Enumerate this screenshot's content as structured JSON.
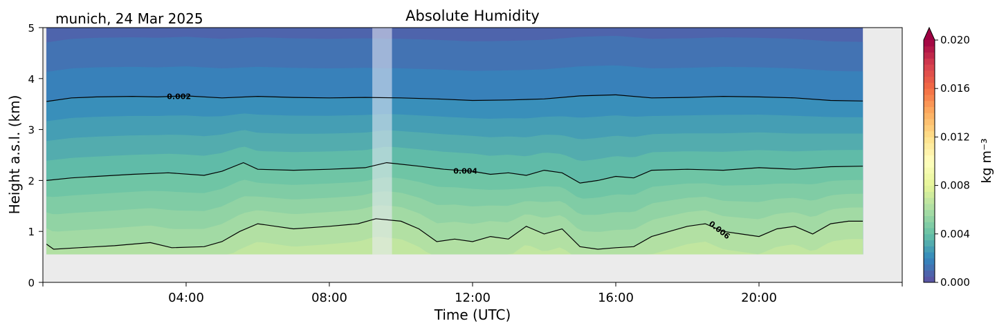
{
  "chart_data": {
    "type": "heatmap",
    "title": "Absolute Humidity",
    "site_label": "munich, 24 Mar 2025",
    "xlabel": "Time (UTC)",
    "ylabel": "Height a.s.l. (km)",
    "xlim_hours": [
      0,
      24
    ],
    "ylim_km": [
      0,
      5
    ],
    "x_ticks": [
      {
        "hour": 4,
        "label": "04:00"
      },
      {
        "hour": 8,
        "label": "08:00"
      },
      {
        "hour": 12,
        "label": "12:00"
      },
      {
        "hour": 16,
        "label": "16:00"
      },
      {
        "hour": 20,
        "label": "20:00"
      }
    ],
    "y_ticks": [
      {
        "value": 0,
        "label": "0"
      },
      {
        "value": 1,
        "label": "1"
      },
      {
        "value": 2,
        "label": "2"
      },
      {
        "value": 3,
        "label": "3"
      },
      {
        "value": 4,
        "label": "4"
      },
      {
        "value": 5,
        "label": "5"
      }
    ],
    "data_coverage_hours": [
      0.1,
      22.9
    ],
    "data_bottom_km": 0.55,
    "missing_data_band_hours": [
      9.2,
      9.75
    ],
    "colorbar": {
      "label": "kg m⁻³",
      "range": [
        0.0,
        0.02
      ],
      "extend": "max",
      "ticks": [
        {
          "value": 0.0,
          "label": "0.000"
        },
        {
          "value": 0.004,
          "label": "0.004"
        },
        {
          "value": 0.008,
          "label": "0.008"
        },
        {
          "value": 0.012,
          "label": "0.012"
        },
        {
          "value": 0.016,
          "label": "0.016"
        },
        {
          "value": 0.02,
          "label": "0.020"
        }
      ],
      "colormap": "Spectral_r"
    },
    "contours": [
      {
        "value": 0.002,
        "label": "0.002",
        "label_at_hour": 3.8,
        "points": [
          [
            0.1,
            3.55
          ],
          [
            0.8,
            3.62
          ],
          [
            1.5,
            3.64
          ],
          [
            2.5,
            3.65
          ],
          [
            3.2,
            3.64
          ],
          [
            4.0,
            3.66
          ],
          [
            5.0,
            3.62
          ],
          [
            6.0,
            3.65
          ],
          [
            7.0,
            3.63
          ],
          [
            8.0,
            3.62
          ],
          [
            9.0,
            3.63
          ],
          [
            10.0,
            3.62
          ],
          [
            11.0,
            3.6
          ],
          [
            12.0,
            3.57
          ],
          [
            13.0,
            3.58
          ],
          [
            14.0,
            3.6
          ],
          [
            15.0,
            3.66
          ],
          [
            16.0,
            3.68
          ],
          [
            17.0,
            3.62
          ],
          [
            18.0,
            3.63
          ],
          [
            19.0,
            3.65
          ],
          [
            20.0,
            3.64
          ],
          [
            21.0,
            3.62
          ],
          [
            22.0,
            3.57
          ],
          [
            22.9,
            3.56
          ]
        ]
      },
      {
        "value": 0.004,
        "label": "0.004",
        "label_at_hour": 11.8,
        "points": [
          [
            0.1,
            2.0
          ],
          [
            0.8,
            2.05
          ],
          [
            1.5,
            2.08
          ],
          [
            2.5,
            2.12
          ],
          [
            3.5,
            2.15
          ],
          [
            4.5,
            2.1
          ],
          [
            5.0,
            2.18
          ],
          [
            5.6,
            2.35
          ],
          [
            6.0,
            2.22
          ],
          [
            7.0,
            2.2
          ],
          [
            8.0,
            2.22
          ],
          [
            9.0,
            2.25
          ],
          [
            9.6,
            2.35
          ],
          [
            10.5,
            2.28
          ],
          [
            11.2,
            2.22
          ],
          [
            12.0,
            2.18
          ],
          [
            12.5,
            2.12
          ],
          [
            13.0,
            2.15
          ],
          [
            13.5,
            2.1
          ],
          [
            14.0,
            2.2
          ],
          [
            14.5,
            2.15
          ],
          [
            15.0,
            1.95
          ],
          [
            15.5,
            2.0
          ],
          [
            16.0,
            2.08
          ],
          [
            16.5,
            2.05
          ],
          [
            17.0,
            2.2
          ],
          [
            18.0,
            2.22
          ],
          [
            19.0,
            2.2
          ],
          [
            20.0,
            2.25
          ],
          [
            21.0,
            2.22
          ],
          [
            22.0,
            2.27
          ],
          [
            22.9,
            2.28
          ]
        ]
      },
      {
        "value": 0.006,
        "label": "0.006",
        "label_at_hour": 18.9,
        "points": [
          [
            0.1,
            0.75
          ],
          [
            0.3,
            0.65
          ],
          [
            1.0,
            0.68
          ],
          [
            2.0,
            0.72
          ],
          [
            3.0,
            0.78
          ],
          [
            3.6,
            0.68
          ],
          [
            4.5,
            0.7
          ],
          [
            5.0,
            0.8
          ],
          [
            5.5,
            1.0
          ],
          [
            6.0,
            1.15
          ],
          [
            6.5,
            1.1
          ],
          [
            7.0,
            1.05
          ],
          [
            8.0,
            1.1
          ],
          [
            8.8,
            1.15
          ],
          [
            9.3,
            1.25
          ],
          [
            10.0,
            1.2
          ],
          [
            10.5,
            1.05
          ],
          [
            11.0,
            0.8
          ],
          [
            11.5,
            0.85
          ],
          [
            12.0,
            0.8
          ],
          [
            12.5,
            0.9
          ],
          [
            13.0,
            0.85
          ],
          [
            13.5,
            1.1
          ],
          [
            14.0,
            0.95
          ],
          [
            14.5,
            1.05
          ],
          [
            15.0,
            0.7
          ],
          [
            15.5,
            0.65
          ],
          [
            16.0,
            0.68
          ],
          [
            16.5,
            0.7
          ],
          [
            17.0,
            0.9
          ],
          [
            17.5,
            1.0
          ],
          [
            18.0,
            1.1
          ],
          [
            18.5,
            1.15
          ],
          [
            19.0,
            1.0
          ],
          [
            19.5,
            0.95
          ],
          [
            20.0,
            0.9
          ],
          [
            20.5,
            1.05
          ],
          [
            21.0,
            1.1
          ],
          [
            21.5,
            0.95
          ],
          [
            22.0,
            1.15
          ],
          [
            22.5,
            1.2
          ],
          [
            22.9,
            1.2
          ]
        ]
      }
    ],
    "colors": {
      "missing_background": "#ebebeb",
      "missing_band": "rgba(235,235,245,0.55)",
      "contour_line": "#000000"
    }
  }
}
